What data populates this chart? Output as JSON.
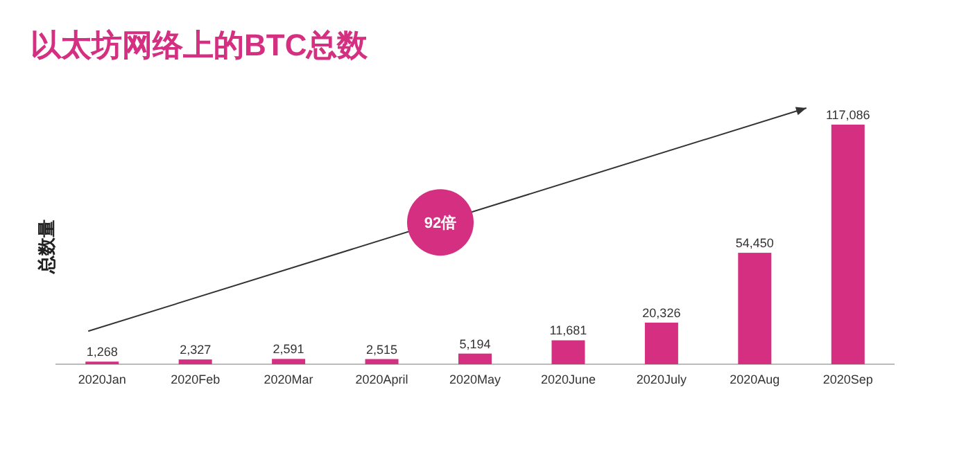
{
  "chart_data": {
    "type": "bar",
    "title": "以太坊网络上的BTC总数",
    "ylabel": "总数量",
    "categories": [
      "2020Jan",
      "2020Feb",
      "2020Mar",
      "2020April",
      "2020May",
      "2020June",
      "2020July",
      "2020Aug",
      "2020Sep"
    ],
    "values": [
      1268,
      2327,
      2591,
      2515,
      5194,
      11681,
      20326,
      54450,
      117086
    ],
    "color": "#d42f80",
    "value_labels": [
      "1,268",
      "2,327",
      "2,591",
      "2,515",
      "5,194",
      "11,681",
      "20,326",
      "54,450",
      "117,086"
    ],
    "annotations": [
      "92倍"
    ]
  }
}
